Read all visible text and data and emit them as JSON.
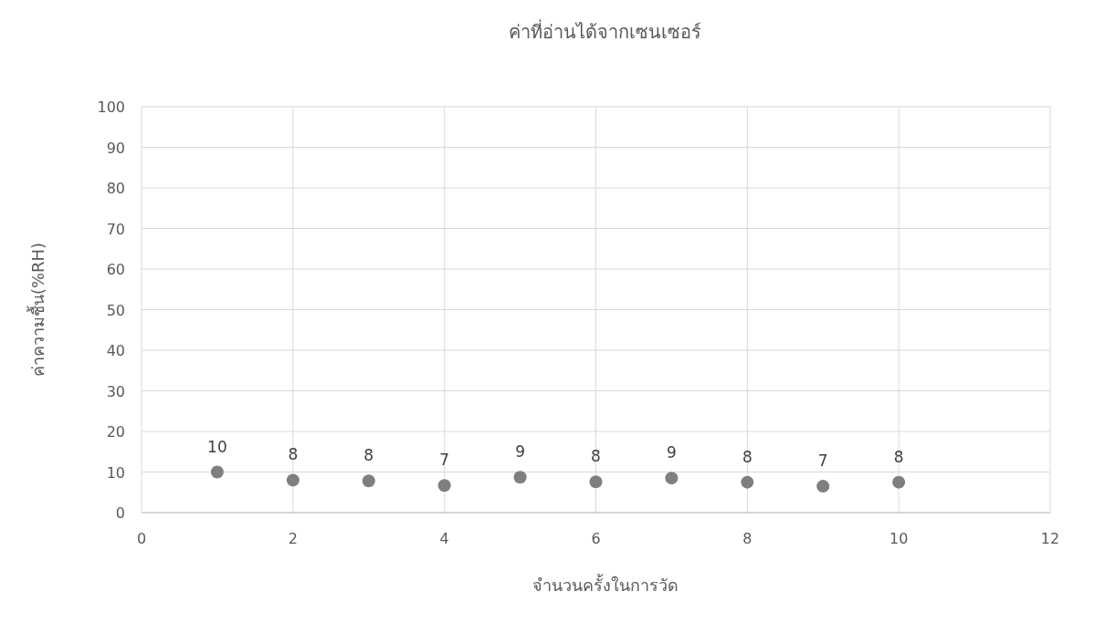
{
  "chart_data": {
    "type": "scatter",
    "title": "ค่าที่อ่านได้จากเซนเซอร์",
    "xlabel": "จำนวนครั้งในการวัด",
    "ylabel": "ค่าความชื้น(%RH)",
    "x": [
      1,
      2,
      3,
      4,
      5,
      6,
      7,
      8,
      9,
      10
    ],
    "series": [
      {
        "color": "#7f7f7f",
        "values": [
          10,
          8,
          7.8,
          6.7,
          8.7,
          7.6,
          8.5,
          7.5,
          6.5,
          7.5
        ],
        "value_labels": [
          "10",
          "8",
          "8",
          "7",
          "9",
          "8",
          "9",
          "8",
          "7",
          "8"
        ]
      }
    ],
    "xlim": [
      0,
      12
    ],
    "xticks": [
      0,
      2,
      4,
      6,
      8,
      10,
      12
    ],
    "ylim": [
      0,
      100
    ],
    "yticks": [
      0,
      10,
      20,
      30,
      40,
      50,
      60,
      70,
      80,
      90,
      100
    ],
    "grid": true,
    "marker": "circle"
  }
}
